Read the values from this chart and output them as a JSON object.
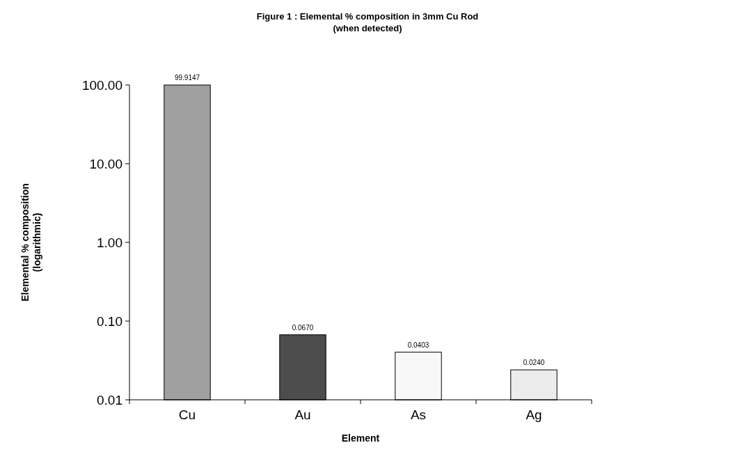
{
  "chart_data": {
    "type": "bar",
    "title": "Figure 1 : Elemental % composition in 3mm Cu Rod",
    "subtitle": "(when detected)",
    "xlabel": "Element",
    "ylabel": "Elemental % composition\n(logarithmic)",
    "categories": [
      "Cu",
      "Au",
      "As",
      "Ag"
    ],
    "values": [
      99.9147,
      0.067,
      0.0403,
      0.024
    ],
    "colors": [
      "#a0a0a0",
      "#4d4d4d",
      "#f8f8f8",
      "#ececec"
    ],
    "value_labels": [
      "99.9147",
      "0.0670",
      "0.0403",
      "0.0240"
    ],
    "log": true,
    "ylim": [
      0.01,
      100
    ],
    "yticks": [
      {
        "value": 0.01,
        "label": "0.01"
      },
      {
        "value": 0.1,
        "label": "0.10"
      },
      {
        "value": 1,
        "label": "1.00"
      },
      {
        "value": 10,
        "label": "10.00"
      },
      {
        "value": 100,
        "label": "100.00"
      }
    ],
    "grid": false
  }
}
